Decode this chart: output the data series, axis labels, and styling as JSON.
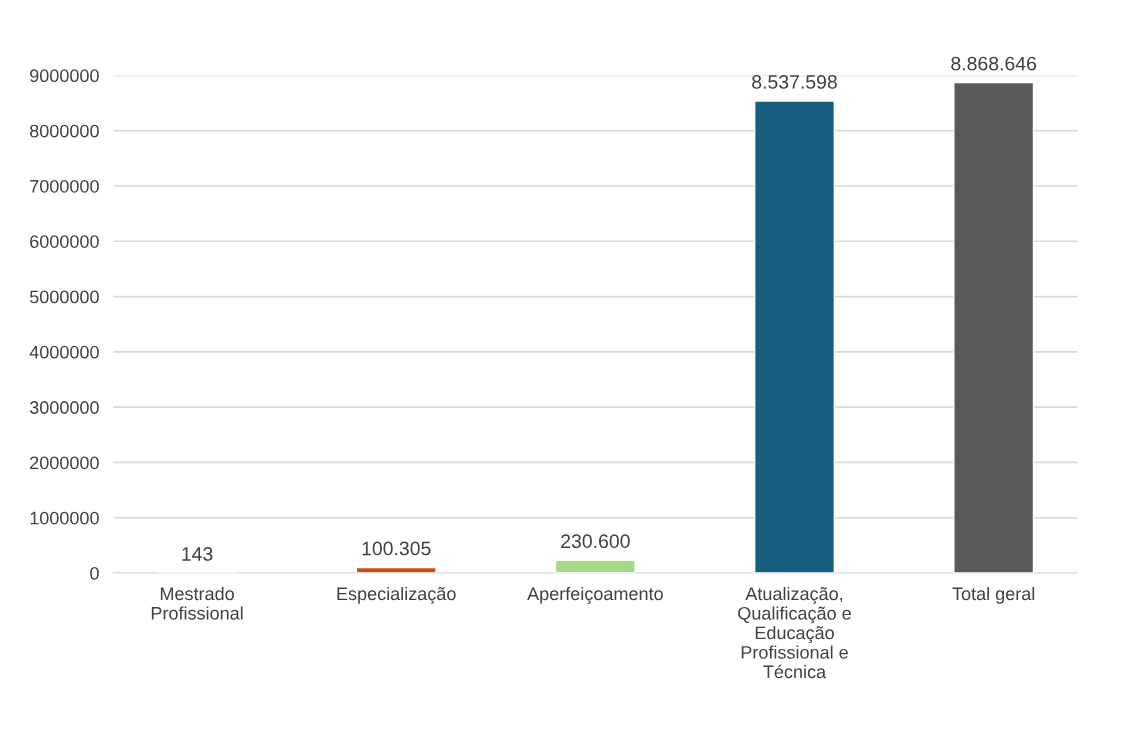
{
  "chart_data": {
    "type": "bar",
    "categories": [
      "Mestrado Profissional",
      "Especialização",
      "Aperfeiçoamento",
      "Atualização, Qualificação e Educação Profissional e Técnica",
      "Total geral"
    ],
    "values": [
      143,
      100305,
      230600,
      8537598,
      8868646
    ],
    "colors": [
      "#8fa9b8",
      "#c0501a",
      "#a8d98a",
      "#175e7f",
      "#595959"
    ],
    "value_labels": [
      "143",
      "100.305",
      "230.600",
      "8.537.598",
      "8.868.646"
    ],
    "ylim": [
      0,
      9000000
    ],
    "yticks": [
      0,
      1000000,
      2000000,
      3000000,
      4000000,
      5000000,
      6000000,
      7000000,
      8000000,
      9000000
    ],
    "grid": "y"
  }
}
